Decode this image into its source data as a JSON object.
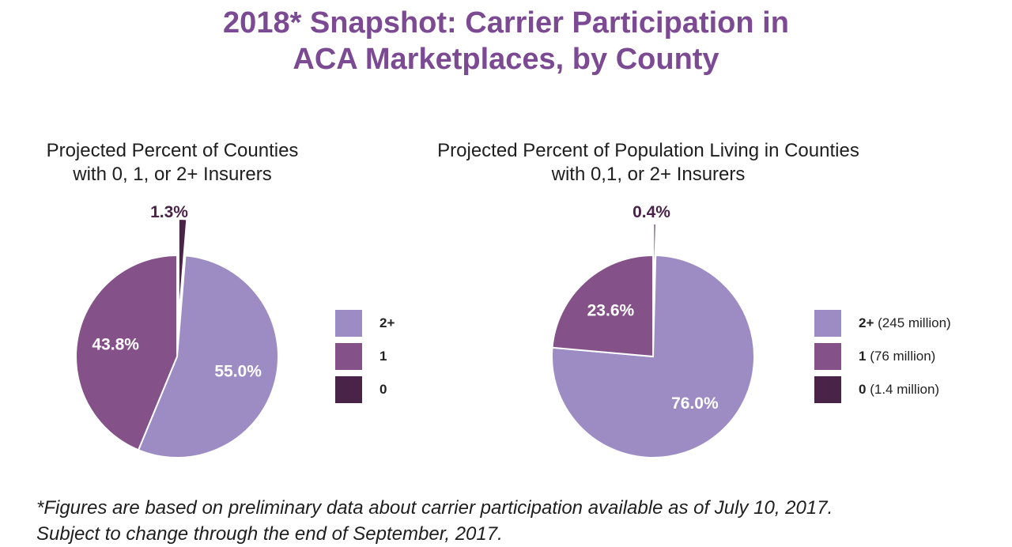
{
  "title": {
    "line1": "2018* Snapshot: Carrier Participation in",
    "line2": "ACA Marketplaces, by County"
  },
  "colors": {
    "two_plus": "#9d8cc4",
    "one": "#845289",
    "zero": "#4a2348",
    "title": "#7b4a93"
  },
  "chart_data": [
    {
      "type": "pie",
      "title_line1": "Projected Percent of Counties",
      "title_line2": "with 0, 1, or 2+ Insurers",
      "categories": [
        "2+",
        "1",
        "0"
      ],
      "values": [
        55.0,
        43.8,
        1.3
      ],
      "labels": [
        "55.0%",
        "43.8%",
        "1.3%"
      ],
      "legend": [
        {
          "key": "2+",
          "detail": ""
        },
        {
          "key": "1",
          "detail": ""
        },
        {
          "key": "0",
          "detail": ""
        }
      ],
      "legend_position": "right"
    },
    {
      "type": "pie",
      "title_line1": "Projected Percent of Population Living in Counties",
      "title_line2": "with 0,1, or 2+ Insurers",
      "categories": [
        "2+",
        "1",
        "0"
      ],
      "values": [
        76.0,
        23.6,
        0.4
      ],
      "labels": [
        "76.0%",
        "23.6%",
        "0.4%"
      ],
      "legend": [
        {
          "key": "2+",
          "detail": "(245 million)"
        },
        {
          "key": "1",
          "detail": "(76 million)"
        },
        {
          "key": "0",
          "detail": "(1.4 million)"
        }
      ],
      "legend_position": "right"
    }
  ],
  "footnote": {
    "line1": "*Figures are based on preliminary data about carrier participation available as of July 10, 2017.",
    "line2": "Subject to change through the end of September, 2017."
  }
}
